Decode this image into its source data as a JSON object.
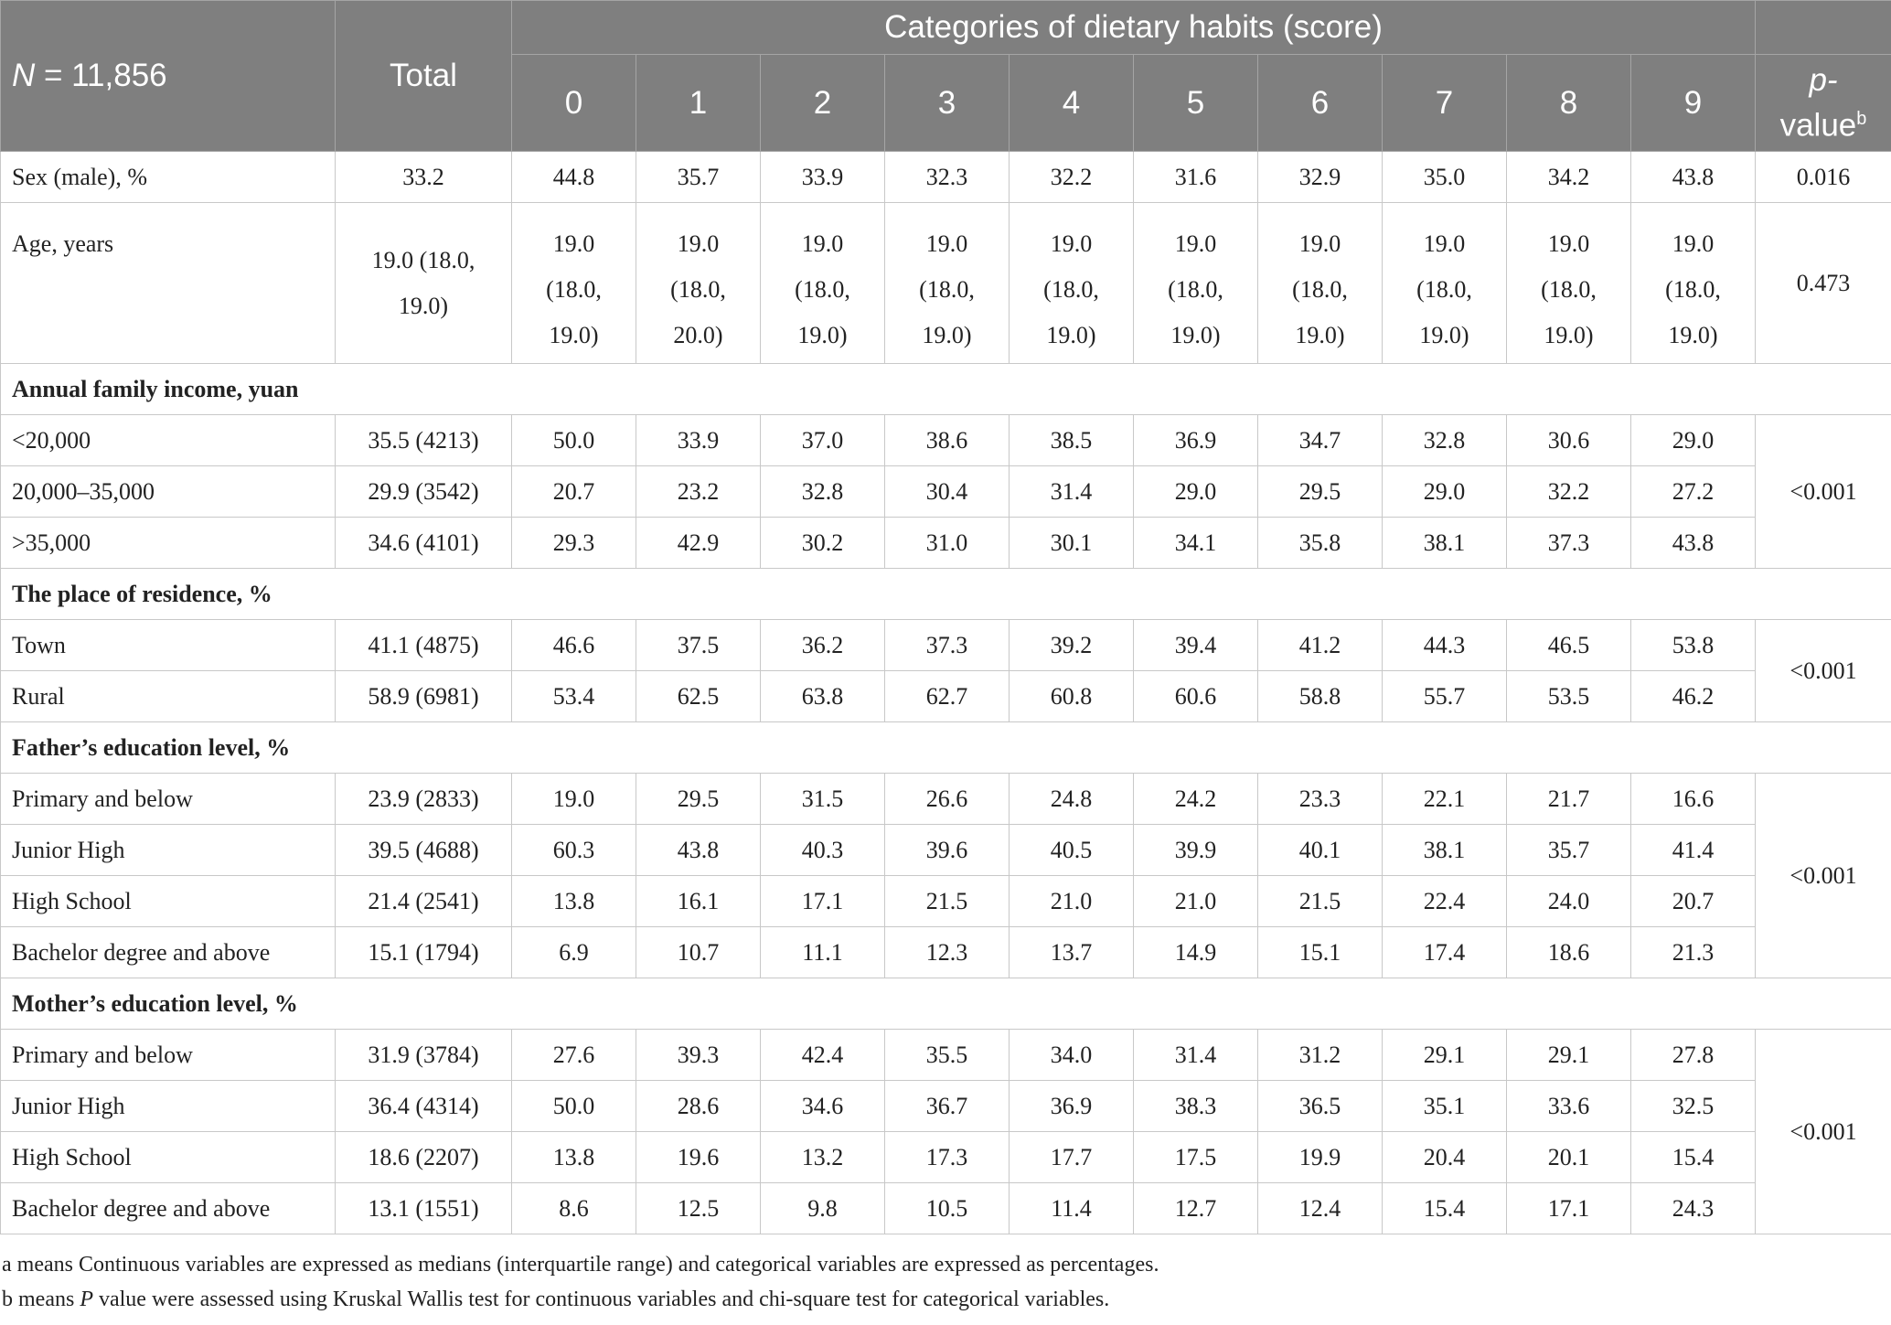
{
  "header": {
    "n_label": "N",
    "n_value": "= 11,856",
    "total": "Total",
    "categories": "Categories of dietary habits (score)",
    "scores": [
      "0",
      "1",
      "2",
      "3",
      "4",
      "5",
      "6",
      "7",
      "8",
      "9"
    ],
    "p_value_top": "p-",
    "p_value_bottom": "value",
    "p_value_sup": "b"
  },
  "rows": {
    "sex": {
      "label": "Sex (male), %",
      "total": "33.2",
      "values": [
        "44.8",
        "35.7",
        "33.9",
        "32.3",
        "32.2",
        "31.6",
        "32.9",
        "35.0",
        "34.2",
        "43.8"
      ],
      "p": "0.016"
    },
    "age": {
      "label": "Age, years",
      "total_a": "19.0 (18.0,",
      "total_b": "19.0)",
      "values": [
        [
          "19.0",
          "(18.0,",
          "19.0)"
        ],
        [
          "19.0",
          "(18.0,",
          "20.0)"
        ],
        [
          "19.0",
          "(18.0,",
          "19.0)"
        ],
        [
          "19.0",
          "(18.0,",
          "19.0)"
        ],
        [
          "19.0",
          "(18.0,",
          "19.0)"
        ],
        [
          "19.0",
          "(18.0,",
          "19.0)"
        ],
        [
          "19.0",
          "(18.0,",
          "19.0)"
        ],
        [
          "19.0",
          "(18.0,",
          "19.0)"
        ],
        [
          "19.0",
          "(18.0,",
          "19.0)"
        ],
        [
          "19.0",
          "(18.0,",
          "19.0)"
        ]
      ],
      "p": "0.473"
    }
  },
  "sections": [
    {
      "title": "Annual family income, yuan",
      "p": "<0.001",
      "rows": [
        {
          "label": "<20,000",
          "total": "35.5 (4213)",
          "values": [
            "50.0",
            "33.9",
            "37.0",
            "38.6",
            "38.5",
            "36.9",
            "34.7",
            "32.8",
            "30.6",
            "29.0"
          ]
        },
        {
          "label": "20,000–35,000",
          "total": "29.9 (3542)",
          "values": [
            "20.7",
            "23.2",
            "32.8",
            "30.4",
            "31.4",
            "29.0",
            "29.5",
            "29.0",
            "32.2",
            "27.2"
          ]
        },
        {
          "label": ">35,000",
          "total": "34.6 (4101)",
          "values": [
            "29.3",
            "42.9",
            "30.2",
            "31.0",
            "30.1",
            "34.1",
            "35.8",
            "38.1",
            "37.3",
            "43.8"
          ]
        }
      ]
    },
    {
      "title": "The place of residence, %",
      "p": "<0.001",
      "rows": [
        {
          "label": "Town",
          "total": "41.1 (4875)",
          "values": [
            "46.6",
            "37.5",
            "36.2",
            "37.3",
            "39.2",
            "39.4",
            "41.2",
            "44.3",
            "46.5",
            "53.8"
          ]
        },
        {
          "label": "Rural",
          "total": "58.9 (6981)",
          "values": [
            "53.4",
            "62.5",
            "63.8",
            "62.7",
            "60.8",
            "60.6",
            "58.8",
            "55.7",
            "53.5",
            "46.2"
          ]
        }
      ]
    },
    {
      "title": "Father’s education level, %",
      "p": "<0.001",
      "rows": [
        {
          "label": "Primary and below",
          "total": "23.9 (2833)",
          "values": [
            "19.0",
            "29.5",
            "31.5",
            "26.6",
            "24.8",
            "24.2",
            "23.3",
            "22.1",
            "21.7",
            "16.6"
          ]
        },
        {
          "label": "Junior High",
          "total": "39.5 (4688)",
          "values": [
            "60.3",
            "43.8",
            "40.3",
            "39.6",
            "40.5",
            "39.9",
            "40.1",
            "38.1",
            "35.7",
            "41.4"
          ]
        },
        {
          "label": "High School",
          "total": "21.4 (2541)",
          "values": [
            "13.8",
            "16.1",
            "17.1",
            "21.5",
            "21.0",
            "21.0",
            "21.5",
            "22.4",
            "24.0",
            "20.7"
          ]
        },
        {
          "label": "Bachelor degree and above",
          "total": "15.1 (1794)",
          "values": [
            "6.9",
            "10.7",
            "11.1",
            "12.3",
            "13.7",
            "14.9",
            "15.1",
            "17.4",
            "18.6",
            "21.3"
          ]
        }
      ]
    },
    {
      "title": "Mother’s education level, %",
      "p": "<0.001",
      "rows": [
        {
          "label": "Primary and below",
          "total": "31.9 (3784)",
          "values": [
            "27.6",
            "39.3",
            "42.4",
            "35.5",
            "34.0",
            "31.4",
            "31.2",
            "29.1",
            "29.1",
            "27.8"
          ]
        },
        {
          "label": "Junior High",
          "total": "36.4 (4314)",
          "values": [
            "50.0",
            "28.6",
            "34.6",
            "36.7",
            "36.9",
            "38.3",
            "36.5",
            "35.1",
            "33.6",
            "32.5"
          ]
        },
        {
          "label": "High School",
          "total": "18.6 (2207)",
          "values": [
            "13.8",
            "19.6",
            "13.2",
            "17.3",
            "17.7",
            "17.5",
            "19.9",
            "20.4",
            "20.1",
            "15.4"
          ]
        },
        {
          "label": "Bachelor degree and above",
          "total": "13.1 (1551)",
          "values": [
            "8.6",
            "12.5",
            "9.8",
            "10.5",
            "11.4",
            "12.7",
            "12.4",
            "15.4",
            "17.1",
            "24.3"
          ]
        }
      ]
    }
  ],
  "notes": {
    "a": "a means Continuous variables are expressed as medians (interquartile range) and categorical variables are expressed as percentages.",
    "b_prefix": "b means ",
    "b_italic": "P",
    "b_suffix": " value were assessed using Kruskal Wallis test for continuous variables and chi-square test for categorical variables."
  }
}
